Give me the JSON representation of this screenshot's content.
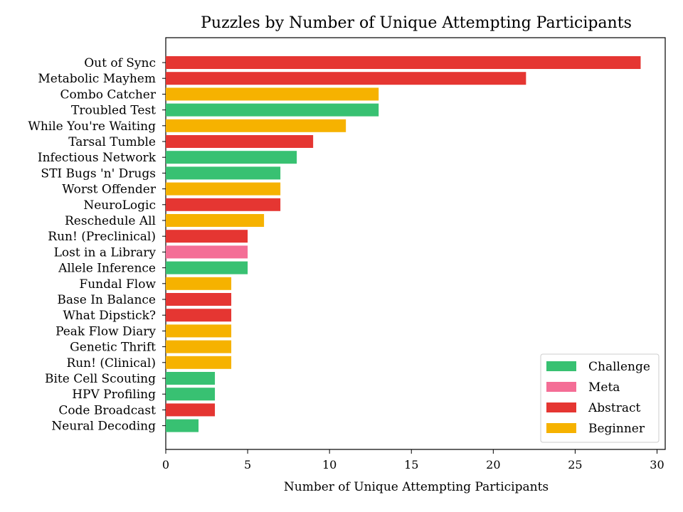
{
  "chart_data": {
    "type": "bar",
    "orientation": "horizontal",
    "title": "Puzzles by Number of Unique Attempting Participants",
    "xlabel": "Number of Unique Attempting Participants",
    "ylabel": "",
    "xlim": [
      0,
      30.5
    ],
    "xticks": [
      0,
      5,
      10,
      15,
      20,
      25,
      30
    ],
    "grid": false,
    "legend_position": "bottom-right",
    "categories": [
      "Out of Sync",
      "Metabolic Mayhem",
      "Combo Catcher",
      "Troubled Test",
      "While You're Waiting",
      "Tarsal Tumble",
      "Infectious Network",
      "STI Bugs 'n' Drugs",
      "Worst Offender",
      "NeuroLogic",
      "Reschedule All",
      "Run! (Preclinical)",
      "Lost in a Library",
      "Allele Inference",
      "Fundal Flow",
      "Base In Balance",
      "What Dipstick?",
      "Peak Flow Diary",
      "Genetic Thrift",
      "Run! (Clinical)",
      "Bite Cell Scouting",
      "HPV Profiling",
      "Code Broadcast",
      "Neural Decoding"
    ],
    "values": [
      29,
      22,
      13,
      13,
      11,
      9,
      8,
      7,
      7,
      7,
      6,
      5,
      5,
      5,
      4,
      4,
      4,
      4,
      4,
      4,
      3,
      3,
      3,
      2
    ],
    "groups": [
      "Abstract",
      "Abstract",
      "Beginner",
      "Challenge",
      "Beginner",
      "Abstract",
      "Challenge",
      "Challenge",
      "Beginner",
      "Abstract",
      "Beginner",
      "Abstract",
      "Meta",
      "Challenge",
      "Beginner",
      "Abstract",
      "Abstract",
      "Beginner",
      "Beginner",
      "Beginner",
      "Challenge",
      "Challenge",
      "Abstract",
      "Challenge"
    ],
    "legend": [
      {
        "name": "Challenge",
        "color": "#38c172"
      },
      {
        "name": "Meta",
        "color": "#f46e96"
      },
      {
        "name": "Abstract",
        "color": "#e53632"
      },
      {
        "name": "Beginner",
        "color": "#f6b200"
      }
    ]
  }
}
